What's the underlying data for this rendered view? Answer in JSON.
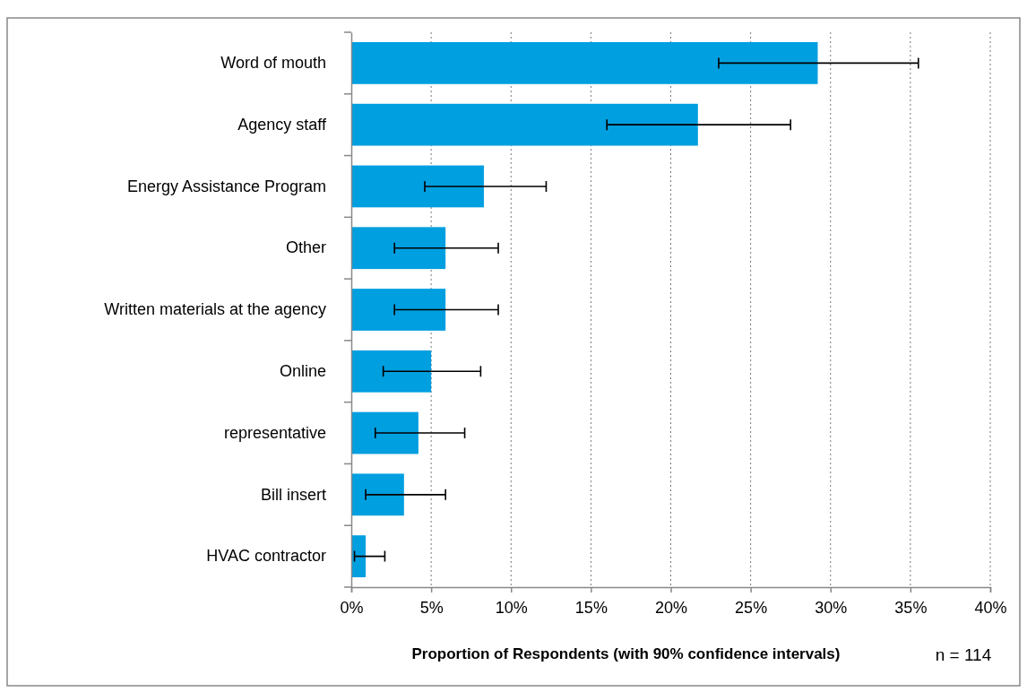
{
  "chart_data": {
    "type": "bar",
    "orientation": "horizontal",
    "categories": [
      "Word of mouth",
      "Agency staff",
      "Energy Assistance  Program",
      "Other",
      "Written materials  at the agency",
      "Online",
      "representative",
      "Bill insert",
      "HVAC contractor"
    ],
    "values": [
      29.2,
      21.7,
      8.3,
      5.9,
      5.9,
      5.0,
      4.2,
      3.3,
      0.9
    ],
    "errors": [
      [
        23.0,
        35.5
      ],
      [
        16.0,
        27.5
      ],
      [
        4.6,
        12.2
      ],
      [
        2.7,
        9.2
      ],
      [
        2.7,
        9.2
      ],
      [
        2.0,
        8.1
      ],
      [
        1.5,
        7.1
      ],
      [
        0.9,
        5.9
      ],
      [
        0.2,
        2.1
      ]
    ],
    "color": "#009fe0",
    "xlim": [
      0,
      40
    ],
    "xticks": [
      {
        "value": 0,
        "label": "0%"
      },
      {
        "value": 5,
        "label": "5%"
      },
      {
        "value": 10,
        "label": "10%"
      },
      {
        "value": 15,
        "label": "15%"
      },
      {
        "value": 20,
        "label": "20%"
      },
      {
        "value": 25,
        "label": "25%"
      },
      {
        "value": 30,
        "label": "30%"
      },
      {
        "value": 35,
        "label": "35%"
      },
      {
        "value": 40,
        "label": "40%"
      }
    ],
    "xlabel": "Proportion of Respondents (with 90% confidence  intervals)",
    "annotations": [
      "n = 114"
    ],
    "grid": "x"
  }
}
